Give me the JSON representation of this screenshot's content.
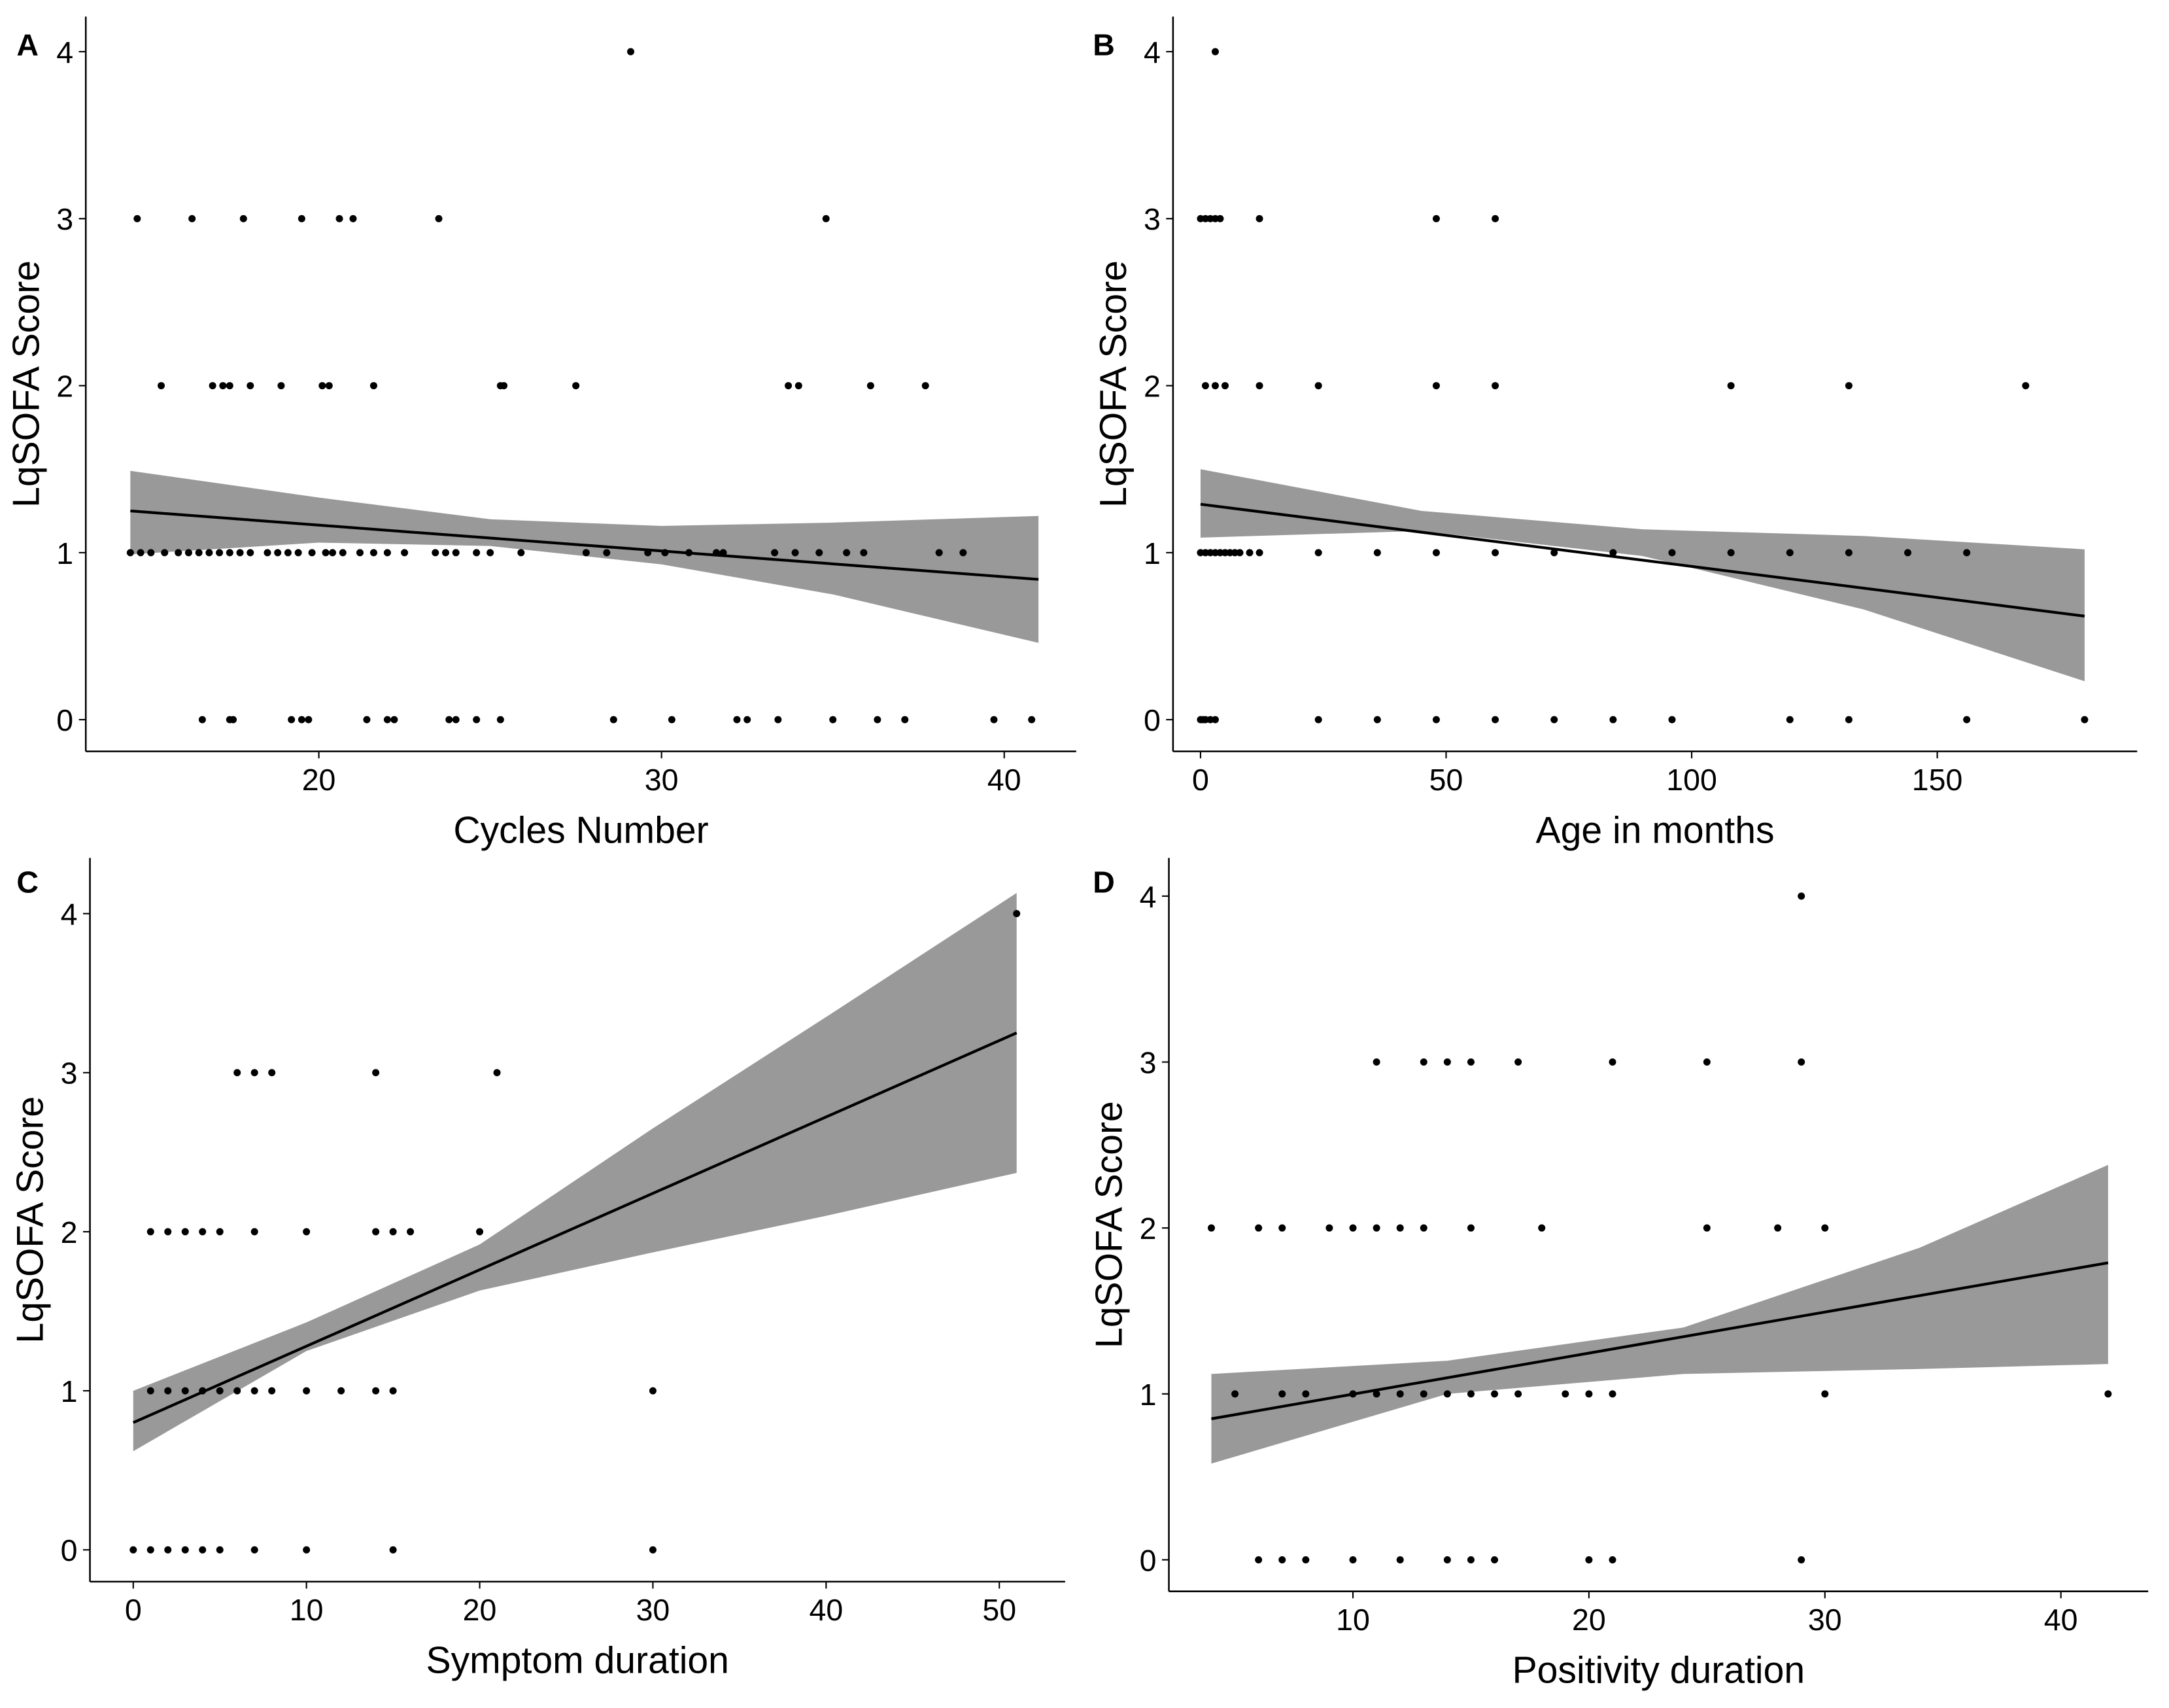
{
  "chart_data": [
    {
      "type": "scatter",
      "panel_label": "A",
      "x_label": "Cycles Number",
      "y_label": "LqSOFA Score",
      "xlim": [
        13.2,
        42.1
      ],
      "ylim": [
        -0.19,
        4.21
      ],
      "xticks": [
        20,
        30,
        40
      ],
      "yticks": [
        0,
        1,
        2,
        3,
        4
      ],
      "color": "#000000",
      "band_color": "#999999",
      "x": [
        29.1,
        14.7,
        16.3,
        17.8,
        19.5,
        20.6,
        21.0,
        23.5,
        34.8,
        15.4,
        16.9,
        17.2,
        17.4,
        18.0,
        18.9,
        20.1,
        20.3,
        21.6,
        25.3,
        25.4,
        27.5,
        33.7,
        34.0,
        36.1,
        37.7,
        14.5,
        14.8,
        15.1,
        15.5,
        15.9,
        16.2,
        16.5,
        16.8,
        17.1,
        17.4,
        17.7,
        18.0,
        18.5,
        18.8,
        19.1,
        19.4,
        19.8,
        20.2,
        20.4,
        20.7,
        21.2,
        21.6,
        22.0,
        22.5,
        23.4,
        23.7,
        24.0,
        24.6,
        25.0,
        25.9,
        27.8,
        28.4,
        29.6,
        30.1,
        30.8,
        31.6,
        31.8,
        33.3,
        33.9,
        34.6,
        35.4,
        35.9,
        38.1,
        38.8,
        16.6,
        17.4,
        17.5,
        19.2,
        19.5,
        19.7,
        21.4,
        22.0,
        22.2,
        23.8,
        24.0,
        24.6,
        25.3,
        28.6,
        30.3,
        32.2,
        32.5,
        33.4,
        35.0,
        36.3,
        37.1,
        39.7,
        40.8
      ],
      "y": [
        4,
        3,
        3,
        3,
        3,
        3,
        3,
        3,
        3,
        2,
        2,
        2,
        2,
        2,
        2,
        2,
        2,
        2,
        2,
        2,
        2,
        2,
        2,
        2,
        2,
        1,
        1,
        1,
        1,
        1,
        1,
        1,
        1,
        1,
        1,
        1,
        1,
        1,
        1,
        1,
        1,
        1,
        1,
        1,
        1,
        1,
        1,
        1,
        1,
        1,
        1,
        1,
        1,
        1,
        1,
        1,
        1,
        1,
        1,
        1,
        1,
        1,
        1,
        1,
        1,
        1,
        1,
        1,
        1,
        0,
        0,
        0,
        0,
        0,
        0,
        0,
        0,
        0,
        0,
        0,
        0,
        0,
        0,
        0,
        0,
        0,
        0,
        0,
        0,
        0,
        0,
        0
      ],
      "fit": {
        "x": [
          14.5,
          41
        ],
        "y": [
          1.25,
          0.84
        ]
      },
      "band": {
        "x": [
          14.5,
          20,
          25,
          30,
          35,
          41
        ],
        "lower": [
          0.99,
          1.06,
          1.04,
          0.93,
          0.75,
          0.46
        ],
        "upper": [
          1.49,
          1.33,
          1.2,
          1.16,
          1.18,
          1.22
        ]
      }
    },
    {
      "type": "scatter",
      "panel_label": "B",
      "x_label": "Age in months",
      "y_label": "LqSOFA Score",
      "xlim": [
        -5.6,
        190.7
      ],
      "ylim": [
        -0.19,
        4.21
      ],
      "xticks": [
        0,
        50,
        100,
        150
      ],
      "yticks": [
        0,
        1,
        2,
        3,
        4
      ],
      "color": "#000000",
      "band_color": "#999999",
      "x": [
        3,
        0,
        1,
        2,
        3,
        4,
        12,
        48,
        60,
        1,
        3,
        5,
        12,
        24,
        48,
        60,
        108,
        132,
        168,
        0,
        1,
        2,
        3,
        4,
        5,
        6,
        7,
        8,
        10,
        12,
        24,
        36,
        48,
        60,
        72,
        84,
        96,
        108,
        120,
        132,
        144,
        156,
        0,
        0.5,
        1,
        2,
        3,
        24,
        36,
        48,
        60,
        72,
        84,
        96,
        120,
        132,
        156,
        180
      ],
      "y": [
        4,
        3,
        3,
        3,
        3,
        3,
        3,
        3,
        3,
        2,
        2,
        2,
        2,
        2,
        2,
        2,
        2,
        2,
        2,
        1,
        1,
        1,
        1,
        1,
        1,
        1,
        1,
        1,
        1,
        1,
        1,
        1,
        1,
        1,
        1,
        1,
        1,
        1,
        1,
        1,
        1,
        1,
        0,
        0,
        0,
        0,
        0,
        0,
        0,
        0,
        0,
        0,
        0,
        0,
        0,
        0,
        0,
        0
      ],
      "fit": {
        "x": [
          0,
          180
        ],
        "y": [
          1.29,
          0.62
        ]
      },
      "band": {
        "x": [
          0,
          45,
          90,
          135,
          180
        ],
        "lower": [
          1.09,
          1.13,
          0.98,
          0.66,
          0.23
        ],
        "upper": [
          1.5,
          1.25,
          1.14,
          1.1,
          1.02
        ]
      }
    },
    {
      "type": "scatter",
      "panel_label": "C",
      "x_label": "Symptom duration",
      "y_label": "LqSOFA Score",
      "xlim": [
        -2.5,
        53.8
      ],
      "ylim": [
        -0.2,
        4.35
      ],
      "xticks": [
        0,
        10,
        20,
        30,
        40,
        50
      ],
      "yticks": [
        0,
        1,
        2,
        3,
        4
      ],
      "color": "#000000",
      "band_color": "#999999",
      "x": [
        51,
        6,
        7,
        8,
        14,
        21,
        1,
        2,
        3,
        4,
        5,
        7,
        10,
        14,
        15,
        16,
        20,
        1,
        2,
        3,
        4,
        5,
        6,
        7,
        8,
        10,
        12,
        14,
        15,
        30,
        0,
        1,
        2,
        3,
        4,
        5,
        7,
        10,
        15,
        30
      ],
      "y": [
        4,
        3,
        3,
        3,
        3,
        3,
        2,
        2,
        2,
        2,
        2,
        2,
        2,
        2,
        2,
        2,
        2,
        1,
        1,
        1,
        1,
        1,
        1,
        1,
        1,
        1,
        1,
        1,
        1,
        1,
        0,
        0,
        0,
        0,
        0,
        0,
        0,
        0,
        0,
        0
      ],
      "fit": {
        "x": [
          0,
          51
        ],
        "y": [
          0.8,
          3.25
        ]
      },
      "band": {
        "x": [
          0,
          10,
          20,
          30,
          40,
          51
        ],
        "lower": [
          0.62,
          1.25,
          1.63,
          1.87,
          2.1,
          2.37
        ],
        "upper": [
          1.0,
          1.43,
          1.92,
          2.65,
          3.35,
          4.13
        ]
      }
    },
    {
      "type": "scatter",
      "panel_label": "D",
      "x_label": "Positivity duration",
      "y_label": "LqSOFA Score",
      "xlim": [
        2.2,
        43.7
      ],
      "ylim": [
        -0.19,
        4.23
      ],
      "xticks": [
        10,
        20,
        30,
        40
      ],
      "yticks": [
        0,
        1,
        2,
        3,
        4
      ],
      "color": "#000000",
      "band_color": "#999999",
      "x": [
        29,
        11,
        13,
        14,
        15,
        17,
        21,
        25,
        29,
        4,
        6,
        7,
        9,
        10,
        11,
        12,
        13,
        15,
        18,
        25,
        28,
        30,
        5,
        7,
        8,
        10,
        11,
        12,
        13,
        14,
        15,
        16,
        17,
        19,
        20,
        21,
        30,
        42,
        6,
        7,
        8,
        10,
        12,
        14,
        15,
        16,
        20,
        21,
        29
      ],
      "y": [
        4,
        3,
        3,
        3,
        3,
        3,
        3,
        3,
        3,
        2,
        2,
        2,
        2,
        2,
        2,
        2,
        2,
        2,
        2,
        2,
        2,
        2,
        1,
        1,
        1,
        1,
        1,
        1,
        1,
        1,
        1,
        1,
        1,
        1,
        1,
        1,
        1,
        1,
        0,
        0,
        0,
        0,
        0,
        0,
        0,
        0,
        0,
        0,
        0
      ],
      "fit": {
        "x": [
          4,
          42
        ],
        "y": [
          0.85,
          1.79
        ]
      },
      "band": {
        "x": [
          4,
          14,
          24,
          34,
          42
        ],
        "lower": [
          0.58,
          1.0,
          1.12,
          1.15,
          1.18
        ],
        "upper": [
          1.12,
          1.2,
          1.4,
          1.88,
          2.38
        ]
      }
    }
  ]
}
